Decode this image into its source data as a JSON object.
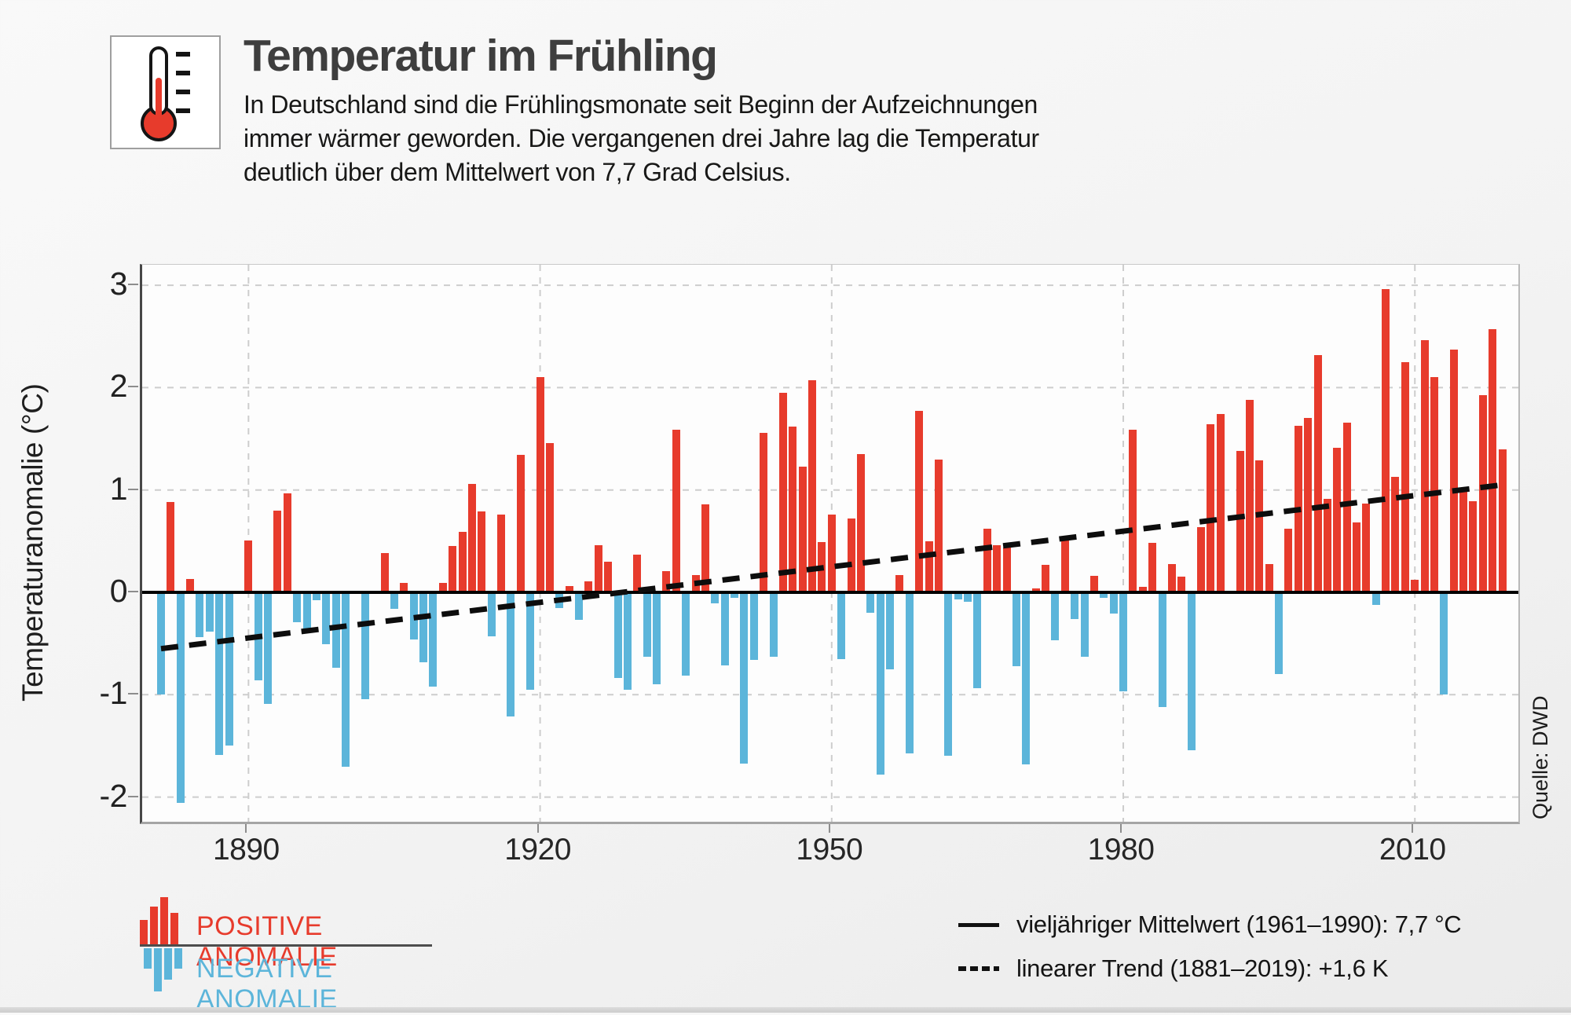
{
  "header": {
    "title": "Temperatur im Frühling",
    "subtitle_lines": [
      "In Deutschland sind die Frühlingsmonate seit Beginn der Aufzeichnungen",
      "immer wärmer geworden. Die vergangenen drei Jahre lag die Temperatur",
      "deutlich über dem Mittelwert von 7,7 Grad Celsius."
    ]
  },
  "source": {
    "label": "Quelle: DWD"
  },
  "legend_left": {
    "positive_label": "POSITIVE ANOMALIE",
    "negative_label": "NEGATIVE ANOMALIE"
  },
  "legend_right": {
    "mean_label": "vieljähriger Mittelwert (1961–1990): 7,7 °C",
    "trend_label": "linearer Trend (1881–2019): +1,6 K"
  },
  "colors": {
    "positive": "#e73b2c",
    "negative": "#5cb5da",
    "title": "#3e3e3e",
    "grid": "#cdcdcd",
    "trend": "#0d0d0d"
  },
  "chart_data": {
    "type": "bar",
    "title": "Temperatur im Frühling",
    "xlabel": "",
    "ylabel": "Temperaturanomalie (°C)",
    "year_range": [
      1881,
      2019
    ],
    "x_ticks": [
      1890,
      1920,
      1950,
      1980,
      2010
    ],
    "y_ticks": [
      3,
      2,
      1,
      0,
      -1,
      -2
    ],
    "ylim": [
      -2.25,
      3.2
    ],
    "baseline_value": 0,
    "mean_reference": "7,7 °C (1961–1990)",
    "trend": {
      "start_year": 1881,
      "end_year": 2019,
      "start_value": -0.55,
      "end_value": 1.05,
      "total_change_K": 1.6
    },
    "values": [
      -1.0,
      0.88,
      -2.06,
      0.13,
      -0.44,
      -0.38,
      -1.59,
      -1.5,
      0.0,
      0.51,
      -0.86,
      -1.09,
      0.8,
      0.97,
      -0.29,
      -0.35,
      -0.08,
      -0.51,
      -0.74,
      -1.7,
      0.0,
      -1.04,
      0.0,
      0.38,
      -0.16,
      0.09,
      -0.46,
      -0.68,
      -0.92,
      0.09,
      0.45,
      0.59,
      1.06,
      0.79,
      -0.43,
      0.76,
      -1.21,
      1.34,
      -0.95,
      2.1,
      1.46,
      -0.15,
      0.06,
      -0.27,
      0.11,
      0.46,
      0.3,
      -0.84,
      -0.95,
      0.37,
      -0.63,
      -0.9,
      0.21,
      1.59,
      -0.81,
      0.17,
      0.86,
      -0.11,
      -0.71,
      -0.05,
      -1.67,
      -0.66,
      1.56,
      -0.63,
      1.95,
      1.62,
      1.23,
      2.07,
      0.49,
      0.76,
      -0.65,
      0.72,
      1.35,
      -0.2,
      -1.78,
      -0.75,
      0.17,
      -1.57,
      1.77,
      0.5,
      1.3,
      -1.6,
      -0.07,
      -0.09,
      -0.94,
      0.62,
      0.46,
      0.44,
      -0.72,
      -1.68,
      0.04,
      0.27,
      -0.47,
      0.51,
      -0.26,
      -0.63,
      0.16,
      -0.05,
      -0.21,
      -0.97,
      1.59,
      0.05,
      0.48,
      -1.12,
      0.28,
      0.15,
      -1.54,
      0.64,
      1.64,
      1.74,
      0.0,
      1.38,
      1.88,
      1.29,
      0.28,
      -0.8,
      0.62,
      1.63,
      1.7,
      2.32,
      0.91,
      1.41,
      1.66,
      0.68,
      0.87,
      -0.12,
      2.96,
      1.13,
      2.25,
      0.12,
      2.46,
      2.1,
      -1.0,
      2.37,
      1.0,
      0.89,
      1.93,
      2.57,
      1.4
    ]
  }
}
